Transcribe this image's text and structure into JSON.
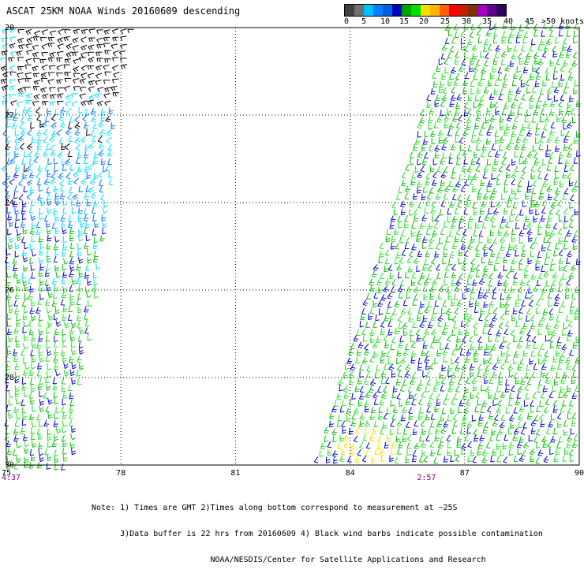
{
  "title": "ASCAT 25KM NOAA Winds 20160609 descending",
  "legend": {
    "colors": [
      "#404040",
      "#707070",
      "#00c0ff",
      "#0080ff",
      "#0060e0",
      "#0000c0",
      "#00a000",
      "#00e000",
      "#f0e000",
      "#ffb000",
      "#ff6000",
      "#ff0000",
      "#c02000",
      "#803000",
      "#a000c0",
      "#600090",
      "#300060"
    ],
    "labels": [
      "0",
      "5",
      "10",
      "15",
      "20",
      "25",
      "30",
      "35",
      "40",
      "45",
      ">50 knots"
    ]
  },
  "map": {
    "lon_ticks": [
      "75",
      "78",
      "81",
      "84",
      "87",
      "90"
    ],
    "lat_ticks": [
      "20",
      "22",
      "24",
      "26",
      "28",
      "30"
    ],
    "lon_range": [
      75,
      90
    ],
    "lat_range": [
      20,
      30
    ],
    "gridlines": true,
    "pass_times": [
      {
        "label": "4:37",
        "lon": 75
      },
      {
        "label": "2:57",
        "lon": 86
      }
    ],
    "barb_colors": {
      "contaminated": "#000000",
      "light": "#00e0ff",
      "medium": "#0070ff",
      "blue": "#0000d0",
      "green": "#00c000",
      "bright_green": "#20e020",
      "yellow": "#f0e000"
    }
  },
  "notes": [
    "Note: 1) Times are GMT 2)Times along bottom correspond to measurement at ~25S",
    "      3)Data buffer is 22 hrs from 20160609 4) Black wind barbs indicate possible contamination",
    "                         NOAA/NESDIS/Center for Satellite Applications and Research"
  ]
}
